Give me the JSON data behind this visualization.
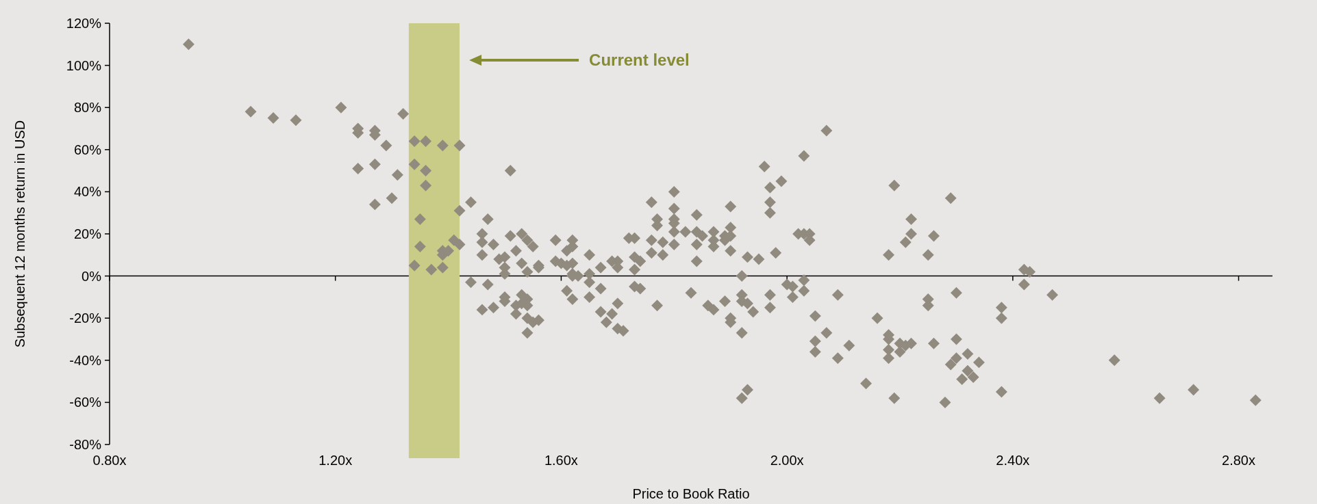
{
  "chart_data": {
    "type": "scatter",
    "xlabel": "Price to Book Ratio",
    "ylabel": "Subsequent 12 months return in USD",
    "marker": "diamond",
    "xlim": [
      0.8,
      2.86
    ],
    "ylim": [
      -80,
      120
    ],
    "xticks": [
      {
        "value": 0.8,
        "label": "0.80x"
      },
      {
        "value": 1.2,
        "label": "1.20x"
      },
      {
        "value": 1.6,
        "label": "1.60x"
      },
      {
        "value": 2.0,
        "label": "2.00x"
      },
      {
        "value": 2.4,
        "label": "2.40x"
      },
      {
        "value": 2.8,
        "label": "2.80x"
      }
    ],
    "yticks": [
      {
        "value": -80,
        "label": "-80%"
      },
      {
        "value": -60,
        "label": "-60%"
      },
      {
        "value": -40,
        "label": "-40%"
      },
      {
        "value": -20,
        "label": "-20%"
      },
      {
        "value": 0,
        "label": "0%"
      },
      {
        "value": 20,
        "label": "20%"
      },
      {
        "value": 40,
        "label": "40%"
      },
      {
        "value": 60,
        "label": "60%"
      },
      {
        "value": 80,
        "label": "80%"
      },
      {
        "value": 100,
        "label": "100%"
      },
      {
        "value": 120,
        "label": "120%"
      }
    ],
    "bands": [
      {
        "axis": "x",
        "from": 1.33,
        "to": 1.42,
        "color": "#c8cc86"
      }
    ],
    "annotations": [
      "Current level"
    ],
    "series": [
      {
        "color": "#918a7e",
        "x": [
          0.94,
          1.05,
          1.09,
          1.13,
          1.21,
          1.24,
          1.24,
          1.27,
          1.27,
          1.29,
          1.32,
          1.34,
          1.36,
          1.39,
          1.42,
          1.24,
          1.27,
          1.31,
          1.34,
          1.36,
          1.36,
          1.27,
          1.3,
          1.44,
          1.35,
          1.42,
          1.47,
          1.41,
          1.42,
          1.35,
          1.39,
          1.39,
          1.4,
          1.34,
          1.37,
          1.39,
          1.46,
          1.46,
          1.46,
          1.44,
          1.47,
          1.46,
          1.48,
          1.51,
          1.48,
          1.51,
          1.53,
          1.52,
          1.54,
          1.55,
          1.49,
          1.5,
          1.5,
          1.5,
          1.53,
          1.54,
          1.56,
          1.56,
          1.59,
          1.62,
          1.62,
          1.61,
          1.59,
          1.6,
          1.61,
          1.62,
          1.62,
          1.63,
          1.65,
          1.65,
          1.65,
          1.67,
          1.69,
          1.7,
          1.7,
          1.73,
          1.74,
          1.73,
          1.72,
          1.73,
          1.76,
          1.76,
          1.76,
          1.77,
          1.77,
          1.8,
          1.8,
          1.8,
          1.8,
          1.8,
          1.82,
          1.84,
          1.84,
          1.85,
          1.78,
          1.8,
          1.78,
          1.84,
          1.84,
          1.87,
          1.87,
          1.87,
          1.89,
          1.89,
          1.9,
          1.9,
          1.9,
          1.9,
          1.93,
          1.95,
          1.98,
          1.92,
          1.96,
          1.97,
          1.99,
          1.97,
          1.97,
          2.03,
          2.07,
          2.02,
          2.03,
          2.04,
          2.04,
          2.0,
          2.01,
          2.03,
          2.01,
          2.03,
          1.97,
          1.97,
          2.09,
          2.05,
          2.07,
          2.05,
          2.05,
          2.11,
          2.09,
          2.14,
          1.93,
          1.92,
          1.92,
          1.92,
          1.93,
          1.94,
          1.9,
          1.9,
          1.92,
          1.89,
          1.86,
          1.87,
          1.83,
          1.77,
          1.73,
          1.74,
          1.7,
          1.69,
          1.67,
          1.68,
          1.7,
          1.71,
          1.67,
          1.65,
          1.62,
          1.61,
          1.62,
          1.5,
          1.5,
          1.53,
          1.54,
          1.52,
          1.53,
          1.54,
          1.52,
          1.54,
          1.55,
          1.56,
          1.54,
          2.19,
          2.29,
          2.22,
          2.22,
          2.26,
          2.21,
          2.18,
          2.25,
          2.42,
          2.43,
          2.42,
          2.47,
          2.3,
          2.25,
          2.25,
          2.38,
          2.38,
          2.16,
          2.18,
          2.18,
          2.2,
          2.21,
          2.22,
          2.26,
          2.3,
          2.18,
          2.2,
          2.18,
          2.32,
          2.34,
          2.3,
          2.29,
          2.32,
          2.33,
          2.31,
          2.58,
          2.19,
          2.28,
          2.38,
          2.66,
          2.72,
          2.83
        ],
        "values": [
          110,
          78,
          75,
          74,
          80,
          70,
          68,
          69,
          67,
          62,
          77,
          64,
          64,
          62,
          62,
          51,
          53,
          48,
          53,
          50,
          43,
          34,
          37,
          35,
          27,
          31,
          27,
          17,
          15,
          14,
          12,
          10,
          12,
          5,
          3,
          4,
          20,
          16,
          10,
          -3,
          -4,
          -16,
          -15,
          50,
          15,
          19,
          20,
          12,
          17,
          14,
          8,
          9,
          4,
          1,
          6,
          2,
          5,
          4,
          17,
          17,
          14,
          12,
          7,
          6,
          5,
          6,
          1,
          0,
          1,
          -3,
          10,
          4,
          7,
          7,
          4,
          9,
          7,
          3,
          18,
          18,
          17,
          11,
          35,
          27,
          24,
          32,
          40,
          27,
          25,
          21,
          21,
          29,
          21,
          19,
          16,
          15,
          10,
          15,
          7,
          21,
          17,
          14,
          19,
          17,
          23,
          19,
          33,
          12,
          9,
          8,
          11,
          0,
          52,
          42,
          45,
          35,
          30,
          57,
          69,
          20,
          20,
          20,
          17,
          -4,
          -5,
          -2,
          -10,
          -7,
          -9,
          -15,
          -9,
          -19,
          -27,
          -31,
          -36,
          -33,
          -39,
          -51,
          -54,
          -58,
          -9,
          -12,
          -13,
          -17,
          -20,
          -22,
          -27,
          -12,
          -14,
          -16,
          -8,
          -14,
          -5,
          -6,
          -13,
          -18,
          -17,
          -22,
          -25,
          -26,
          -6,
          -10,
          -11,
          -7,
          0,
          -10,
          -12,
          -9,
          -11,
          -14,
          -13,
          -14,
          -18,
          -20,
          -22,
          -21,
          -27,
          43,
          37,
          27,
          20,
          19,
          16,
          10,
          10,
          3,
          2,
          -4,
          -9,
          -8,
          -11,
          -14,
          -15,
          -20,
          -20,
          -28,
          -30,
          -32,
          -33,
          -32,
          -32,
          -30,
          -35,
          -36,
          -39,
          -37,
          -41,
          -39,
          -42,
          -45,
          -48,
          -49,
          -40,
          -58,
          -60,
          -55,
          -58,
          -54,
          -59
        ]
      }
    ]
  }
}
